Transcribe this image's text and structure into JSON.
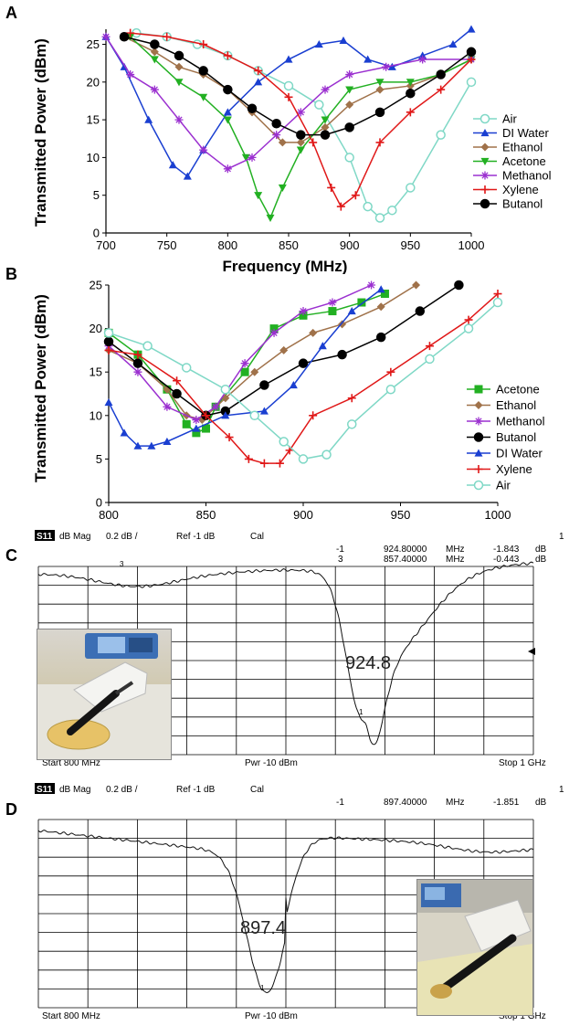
{
  "panels": {
    "a": "A",
    "b": "B",
    "c": "C",
    "d": "D"
  },
  "chart_data": [
    {
      "type": "line",
      "panel": "A",
      "xlabel": "Frequency (MHz)",
      "ylabel": "Transmitted Power (dBm)",
      "xlim": [
        700,
        1000
      ],
      "ylim": [
        0,
        27
      ],
      "xticks": [
        700,
        750,
        800,
        850,
        900,
        950,
        1000
      ],
      "yticks": [
        0,
        5,
        10,
        15,
        20,
        25
      ],
      "legend_position": "right",
      "series": [
        {
          "name": "Air",
          "color": "#7fd8c6",
          "marker": "circle-open",
          "x": [
            725,
            750,
            775,
            800,
            825,
            850,
            875,
            900,
            915,
            925,
            935,
            950,
            975,
            1000
          ],
          "y": [
            26.5,
            26,
            25,
            23.5,
            21.5,
            19.5,
            17,
            10,
            3.5,
            2,
            3,
            6,
            13,
            20
          ]
        },
        {
          "name": "DI Water",
          "color": "#1a3fd1",
          "marker": "triangle",
          "x": [
            700,
            715,
            735,
            755,
            767,
            780,
            800,
            825,
            850,
            875,
            895,
            915,
            935,
            960,
            985,
            1000
          ],
          "y": [
            26,
            22,
            15,
            9,
            7.5,
            11,
            16,
            20,
            23,
            25,
            25.5,
            23,
            22,
            23.5,
            25,
            27
          ]
        },
        {
          "name": "Ethanol",
          "color": "#a0724a",
          "marker": "diamond",
          "x": [
            715,
            740,
            760,
            780,
            800,
            820,
            845,
            860,
            880,
            900,
            925,
            950,
            975,
            1000
          ],
          "y": [
            26,
            24,
            22,
            21,
            19,
            16,
            12,
            12,
            14,
            17,
            19,
            19.5,
            21,
            23
          ]
        },
        {
          "name": "Acetone",
          "color": "#22b022",
          "marker": "triangle-down",
          "x": [
            720,
            740,
            760,
            780,
            800,
            815,
            825,
            835,
            845,
            860,
            880,
            900,
            925,
            950,
            975,
            1000
          ],
          "y": [
            26,
            23,
            20,
            18,
            15,
            10,
            5,
            2,
            6,
            11,
            15,
            19,
            20,
            20,
            21,
            23
          ]
        },
        {
          "name": "Methanol",
          "color": "#9b30d0",
          "marker": "asterisk",
          "x": [
            700,
            720,
            740,
            760,
            780,
            800,
            820,
            840,
            860,
            880,
            900,
            930,
            960,
            1000
          ],
          "y": [
            26,
            21,
            19,
            15,
            11,
            8.5,
            10,
            13,
            16,
            19,
            21,
            22,
            23,
            23
          ]
        },
        {
          "name": "Xylene",
          "color": "#e01818",
          "marker": "plus",
          "x": [
            720,
            750,
            780,
            800,
            825,
            850,
            870,
            885,
            893,
            905,
            925,
            950,
            975,
            1000
          ],
          "y": [
            26.5,
            26,
            25,
            23.5,
            21.5,
            18,
            12,
            6,
            3.5,
            5,
            12,
            16,
            19,
            23
          ]
        },
        {
          "name": "Butanol",
          "color": "#000000",
          "marker": "circle",
          "x": [
            715,
            740,
            760,
            780,
            800,
            820,
            840,
            860,
            880,
            900,
            925,
            950,
            975,
            1000
          ],
          "y": [
            26,
            25,
            23.5,
            21.5,
            19,
            16.5,
            14.5,
            13,
            13,
            14,
            16,
            18.5,
            21,
            24
          ]
        }
      ]
    },
    {
      "type": "line",
      "panel": "B",
      "xlabel": "",
      "ylabel": "Transmitted Power (dBm)",
      "xlim": [
        800,
        1000
      ],
      "ylim": [
        0,
        25
      ],
      "xticks": [
        800,
        850,
        900,
        950,
        1000
      ],
      "yticks": [
        0,
        5,
        10,
        15,
        20,
        25
      ],
      "legend_position": "right",
      "series": [
        {
          "name": "Acetone",
          "color": "#22b022",
          "marker": "square",
          "x": [
            800,
            815,
            830,
            840,
            845,
            850,
            855,
            870,
            885,
            900,
            915,
            930,
            942
          ],
          "y": [
            19.5,
            17,
            13,
            9,
            8,
            8.5,
            11,
            15,
            20,
            21.5,
            22,
            23,
            24
          ]
        },
        {
          "name": "Ethanol",
          "color": "#a0724a",
          "marker": "diamond",
          "x": [
            800,
            815,
            830,
            840,
            848,
            860,
            875,
            890,
            905,
            920,
            940,
            958
          ],
          "y": [
            17.5,
            16,
            13,
            10,
            9.5,
            12,
            15,
            17.5,
            19.5,
            20.5,
            22.5,
            25
          ]
        },
        {
          "name": "Methanol",
          "color": "#9b30d0",
          "marker": "asterisk",
          "x": [
            800,
            815,
            830,
            845,
            855,
            870,
            885,
            900,
            915,
            935
          ],
          "y": [
            18,
            15,
            11,
            9.5,
            11,
            16,
            19.5,
            22,
            23,
            25
          ]
        },
        {
          "name": "Butanol",
          "color": "#000000",
          "marker": "circle",
          "x": [
            800,
            815,
            835,
            850,
            860,
            880,
            900,
            920,
            940,
            960,
            980
          ],
          "y": [
            18.5,
            16,
            12.5,
            10,
            10.5,
            13.5,
            16,
            17,
            19,
            22,
            25
          ]
        },
        {
          "name": "DI Water",
          "color": "#1a3fd1",
          "marker": "triangle",
          "x": [
            800,
            808,
            815,
            822,
            830,
            845,
            860,
            880,
            895,
            910,
            925,
            940
          ],
          "y": [
            11.5,
            8,
            6.5,
            6.5,
            7,
            8.5,
            10,
            10.5,
            13.5,
            18,
            22,
            24.5
          ]
        },
        {
          "name": "Xylene",
          "color": "#e01818",
          "marker": "plus",
          "x": [
            800,
            815,
            835,
            850,
            862,
            872,
            880,
            888,
            893,
            905,
            925,
            945,
            965,
            985,
            1000
          ],
          "y": [
            17.5,
            17,
            14,
            10,
            7.5,
            5,
            4.5,
            4.5,
            6,
            10,
            12,
            15,
            18,
            21,
            24
          ]
        },
        {
          "name": "Air",
          "color": "#7fd8c6",
          "marker": "circle-open",
          "x": [
            800,
            820,
            840,
            860,
            875,
            890,
            900,
            912,
            925,
            945,
            965,
            985,
            1000
          ],
          "y": [
            19.5,
            18,
            15.5,
            13,
            10,
            7,
            5,
            5.5,
            9,
            13,
            16.5,
            20,
            23
          ]
        }
      ]
    }
  ],
  "vna": {
    "c": {
      "header": {
        "badge": "S11",
        "mode": "dB Mag",
        "scale": "0.2 dB /",
        "ref": "Ref -1 dB",
        "cal": "Cal",
        "channel": "1"
      },
      "markers": [
        {
          "id": "-1",
          "freq": "924.80000",
          "unit": "MHz",
          "value": "-1.843",
          "vunit": "dB"
        },
        {
          "id": "3",
          "freq": "857.40000",
          "unit": "MHz",
          "value": "-0.443",
          "vunit": "dB"
        }
      ],
      "annotation": "924.8",
      "marker_label_1": "1",
      "marker_label_3": "3",
      "footer": {
        "start": "Start  800 MHz",
        "power": "Pwr  -10 dBm",
        "stop": "Stop  1 GHz"
      }
    },
    "d": {
      "header": {
        "badge": "S11",
        "mode": "dB Mag",
        "scale": "0.2 dB /",
        "ref": "Ref -1 dB",
        "cal": "Cal",
        "channel": "1"
      },
      "markers": [
        {
          "id": "-1",
          "freq": "897.40000",
          "unit": "MHz",
          "value": "-1.851",
          "vunit": "dB"
        }
      ],
      "annotation": "897.4",
      "marker_label_1": "1",
      "footer": {
        "start": "Start  800 MHz",
        "power": "Pwr  -10 dBm",
        "stop": "Stop  1 GHz"
      }
    }
  }
}
